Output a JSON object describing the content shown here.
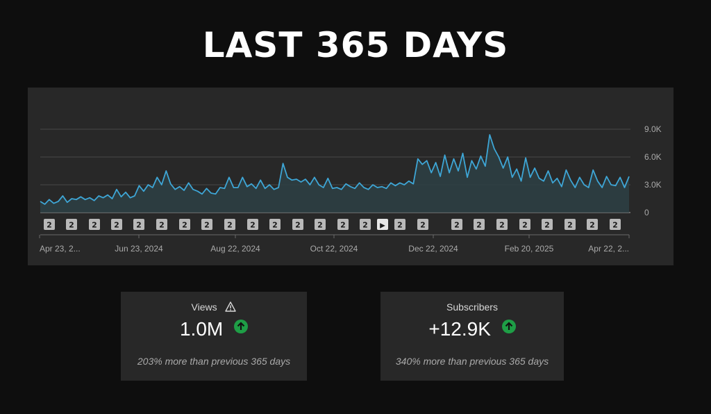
{
  "page": {
    "title": "LAST 365 DAYS"
  },
  "chart_data": {
    "type": "area",
    "x_labels": [
      "Apr 23, 2...",
      "Jun 23, 2024",
      "Aug 22, 2024",
      "Oct 22, 2024",
      "Dec 22, 2024",
      "Feb 20, 2025",
      "Apr 22, 2..."
    ],
    "y_ticks": [
      "9.0K",
      "6.0K",
      "3.0K",
      "0"
    ],
    "ylim": [
      0,
      9000
    ],
    "grid": true,
    "line_color": "#3ea6d6",
    "markers": [
      "2",
      "2",
      "2",
      "2",
      "2",
      "2",
      "2",
      "2",
      "2",
      "2",
      "2",
      "2",
      "2",
      "2",
      "2",
      "▶",
      "2",
      "2",
      "2",
      "2",
      "2",
      "2",
      "2",
      "2",
      "2",
      "2"
    ],
    "anchors": [
      [
        0,
        1200
      ],
      [
        5,
        900
      ],
      [
        10,
        1400
      ],
      [
        15,
        1000
      ],
      [
        20,
        1200
      ],
      [
        25,
        1800
      ],
      [
        30,
        1100
      ],
      [
        35,
        1500
      ],
      [
        40,
        1400
      ],
      [
        45,
        1700
      ],
      [
        50,
        1400
      ],
      [
        55,
        1600
      ],
      [
        60,
        1300
      ],
      [
        65,
        1800
      ],
      [
        70,
        1600
      ],
      [
        75,
        1900
      ],
      [
        80,
        1500
      ],
      [
        85,
        2500
      ],
      [
        90,
        1700
      ],
      [
        95,
        2200
      ],
      [
        100,
        1600
      ],
      [
        105,
        1800
      ],
      [
        110,
        2900
      ],
      [
        115,
        2300
      ],
      [
        120,
        3000
      ],
      [
        125,
        2700
      ],
      [
        130,
        3800
      ],
      [
        135,
        3000
      ],
      [
        140,
        4500
      ],
      [
        145,
        3100
      ],
      [
        150,
        2500
      ],
      [
        155,
        2800
      ],
      [
        160,
        2400
      ],
      [
        165,
        3200
      ],
      [
        170,
        2500
      ],
      [
        175,
        2300
      ],
      [
        180,
        2000
      ],
      [
        185,
        2600
      ],
      [
        190,
        2100
      ],
      [
        195,
        2000
      ],
      [
        200,
        2700
      ],
      [
        205,
        2600
      ],
      [
        210,
        3800
      ],
      [
        215,
        2700
      ],
      [
        220,
        2700
      ],
      [
        225,
        3800
      ],
      [
        230,
        2800
      ],
      [
        235,
        3100
      ],
      [
        240,
        2600
      ],
      [
        245,
        3500
      ],
      [
        250,
        2600
      ],
      [
        255,
        3000
      ],
      [
        260,
        2500
      ],
      [
        265,
        2700
      ],
      [
        270,
        5300
      ],
      [
        275,
        3800
      ],
      [
        280,
        3500
      ],
      [
        285,
        3600
      ],
      [
        290,
        3300
      ],
      [
        295,
        3600
      ],
      [
        300,
        3000
      ],
      [
        305,
        3800
      ],
      [
        310,
        3000
      ],
      [
        315,
        2700
      ],
      [
        320,
        3700
      ],
      [
        325,
        2600
      ],
      [
        330,
        2700
      ],
      [
        335,
        2500
      ],
      [
        340,
        3100
      ],
      [
        345,
        2800
      ],
      [
        350,
        2600
      ],
      [
        355,
        3200
      ],
      [
        360,
        2700
      ],
      [
        365,
        2500
      ],
      [
        370,
        3000
      ],
      [
        375,
        2700
      ],
      [
        380,
        2800
      ],
      [
        385,
        2600
      ],
      [
        390,
        3200
      ],
      [
        395,
        2900
      ],
      [
        400,
        3200
      ],
      [
        405,
        3000
      ],
      [
        410,
        3400
      ],
      [
        415,
        3100
      ],
      [
        420,
        5800
      ],
      [
        425,
        5200
      ],
      [
        430,
        5600
      ],
      [
        435,
        4300
      ],
      [
        440,
        5400
      ],
      [
        445,
        3900
      ],
      [
        450,
        6200
      ],
      [
        455,
        4300
      ],
      [
        460,
        5800
      ],
      [
        465,
        4500
      ],
      [
        470,
        6400
      ],
      [
        475,
        3800
      ],
      [
        480,
        5600
      ],
      [
        485,
        4700
      ],
      [
        490,
        6100
      ],
      [
        495,
        5000
      ],
      [
        500,
        8400
      ],
      [
        505,
        6900
      ],
      [
        510,
        6000
      ],
      [
        515,
        4800
      ],
      [
        520,
        6000
      ],
      [
        525,
        3800
      ],
      [
        530,
        4700
      ],
      [
        535,
        3400
      ],
      [
        540,
        5900
      ],
      [
        545,
        3800
      ],
      [
        550,
        4800
      ],
      [
        555,
        3700
      ],
      [
        560,
        3400
      ],
      [
        565,
        4500
      ],
      [
        570,
        3200
      ],
      [
        575,
        3700
      ],
      [
        580,
        2800
      ],
      [
        585,
        4600
      ],
      [
        590,
        3500
      ],
      [
        595,
        2700
      ],
      [
        600,
        3800
      ],
      [
        605,
        3000
      ],
      [
        610,
        2700
      ],
      [
        615,
        4600
      ],
      [
        620,
        3400
      ],
      [
        625,
        2700
      ],
      [
        630,
        3900
      ],
      [
        635,
        3000
      ],
      [
        640,
        2900
      ],
      [
        645,
        3800
      ],
      [
        650,
        2700
      ],
      [
        655,
        3900
      ]
    ]
  },
  "cards": [
    {
      "label": "Views",
      "value": "1.0M",
      "desc": "203% more than previous 365 days",
      "warning": true
    },
    {
      "label": "Subscribers",
      "value": "+12.9K",
      "desc": "340% more than previous 365 days",
      "warning": false
    }
  ]
}
